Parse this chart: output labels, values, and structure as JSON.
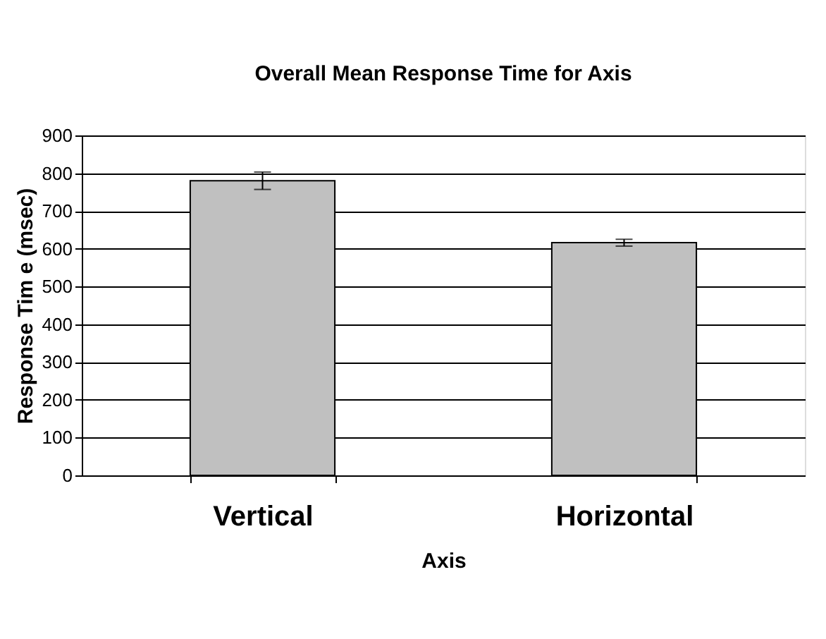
{
  "chart_data": {
    "type": "bar",
    "title": "Overall Mean Response Time for Axis",
    "xlabel": "Axis",
    "ylabel": "Response Tim e (msec)",
    "categories": [
      "Vertical",
      "Horizontal"
    ],
    "series": [
      {
        "color": "#c0c0c0",
        "values": [
          780,
          616
        ],
        "errors": [
          23,
          9
        ]
      }
    ],
    "ylim": [
      0,
      900
    ],
    "yticks": [
      0,
      100,
      200,
      300,
      400,
      500,
      600,
      700,
      800,
      900
    ],
    "grid": "y"
  }
}
